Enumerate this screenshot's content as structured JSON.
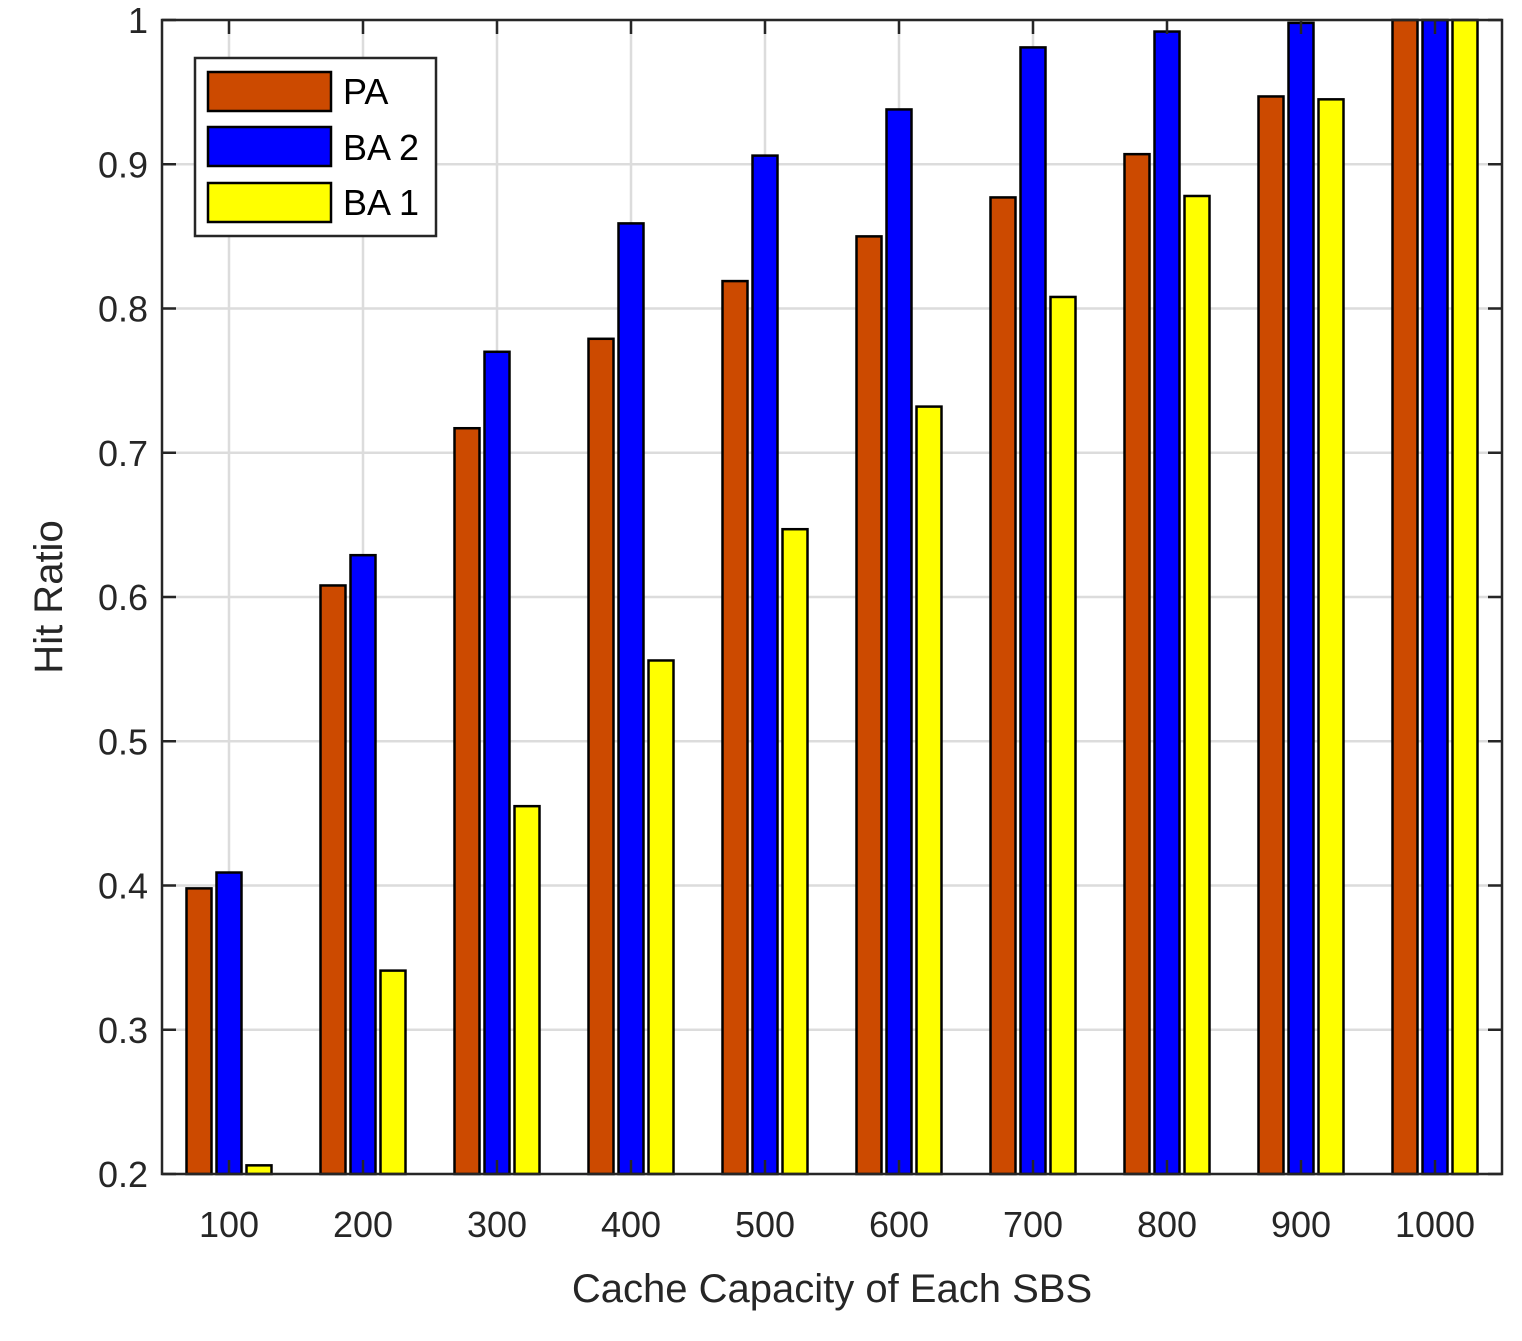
{
  "chart_data": {
    "type": "bar",
    "title": "",
    "xlabel": "Cache Capacity of Each SBS",
    "ylabel": "Hit Ratio",
    "ylim": [
      0.2,
      1
    ],
    "yticks": [
      "0.2",
      "0.3",
      "0.4",
      "0.5",
      "0.6",
      "0.7",
      "0.8",
      "0.9",
      "1"
    ],
    "yticks_values": [
      0.2,
      0.3,
      0.4,
      0.5,
      0.6,
      0.7,
      0.8,
      0.9,
      1.0
    ],
    "categories": [
      "100",
      "200",
      "300",
      "400",
      "500",
      "600",
      "700",
      "800",
      "900",
      "1000"
    ],
    "grid": true,
    "legend_position": "top-left",
    "series": [
      {
        "name": "PA",
        "color": "#cc4a00",
        "values": [
          0.398,
          0.608,
          0.717,
          0.779,
          0.819,
          0.85,
          0.877,
          0.907,
          0.947,
          1.0
        ]
      },
      {
        "name": "BA 2",
        "color": "#0000ff",
        "values": [
          0.409,
          0.629,
          0.77,
          0.859,
          0.906,
          0.938,
          0.981,
          0.992,
          0.998,
          1.0
        ]
      },
      {
        "name": "BA 1",
        "color": "#ffff00",
        "values": [
          0.206,
          0.341,
          0.455,
          0.556,
          0.647,
          0.732,
          0.808,
          0.878,
          0.945,
          1.0
        ]
      }
    ]
  }
}
